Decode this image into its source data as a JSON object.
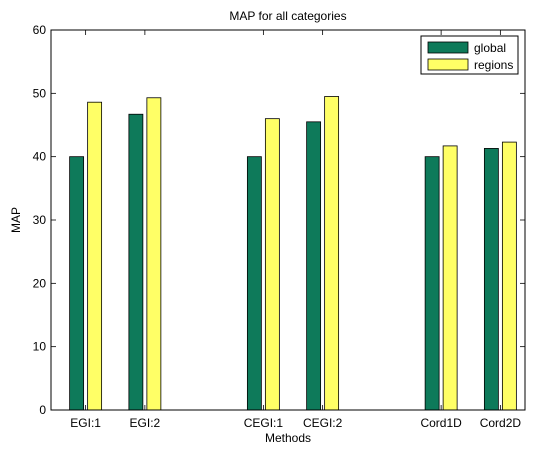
{
  "chart_data": {
    "type": "bar",
    "title": "MAP for all categories",
    "xlabel": "Methods",
    "ylabel": "MAP",
    "ylim": [
      0,
      60
    ],
    "yticks": [
      0,
      10,
      20,
      30,
      40,
      50,
      60
    ],
    "categories": [
      "EGI:1",
      "EGI:2",
      "",
      "CEGI:1",
      "CEGI:2",
      "",
      "Cord1D",
      "Cord2D"
    ],
    "series": [
      {
        "name": "global",
        "color": "#0e7a5a",
        "values": [
          40.0,
          46.7,
          null,
          40.0,
          45.5,
          null,
          40.0,
          41.3
        ]
      },
      {
        "name": "regions",
        "color": "#ffff66",
        "values": [
          48.6,
          49.3,
          null,
          46.0,
          49.5,
          null,
          41.7,
          42.3
        ]
      }
    ],
    "legend_position": "top-right",
    "grid": false
  }
}
